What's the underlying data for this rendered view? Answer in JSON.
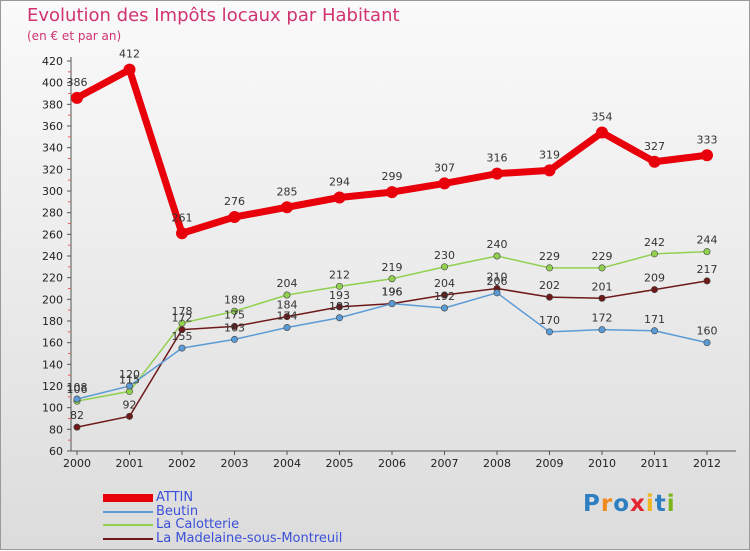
{
  "header": {
    "title": "Evolution des Impôts locaux par Habitant",
    "subtitle": "(en € et par an)"
  },
  "logo": {
    "text": "Proxiti"
  },
  "chart_data": {
    "type": "line",
    "title": "Evolution des Impôts locaux par Habitant",
    "subtitle": "(en € et par an)",
    "xlabel": "",
    "ylabel": "",
    "x": [
      "2000",
      "2001",
      "2002",
      "2003",
      "2004",
      "2005",
      "2006",
      "2007",
      "2008",
      "2009",
      "2010",
      "2011",
      "2012"
    ],
    "ylim": [
      60,
      420
    ],
    "yticks": [
      60,
      80,
      100,
      120,
      140,
      160,
      180,
      200,
      220,
      240,
      260,
      280,
      300,
      320,
      340,
      360,
      380,
      400,
      420
    ],
    "grid": false,
    "legend": "bottom-left",
    "series": [
      {
        "name": "ATTIN",
        "color": "#e8000b",
        "values": [
          386,
          412,
          261,
          276,
          285,
          294,
          299,
          307,
          316,
          319,
          354,
          327,
          333
        ]
      },
      {
        "name": "Beutin",
        "color": "#5b9bd5",
        "values": [
          108,
          120,
          155,
          163,
          174,
          183,
          196,
          192,
          206,
          170,
          172,
          171,
          160
        ]
      },
      {
        "name": "La Calotterie",
        "color": "#92d050",
        "values": [
          106,
          115,
          178,
          189,
          204,
          212,
          219,
          230,
          240,
          229,
          229,
          242,
          244
        ]
      },
      {
        "name": "La Madelaine-sous-Montreuil",
        "color": "#6e1a1a",
        "values": [
          82,
          92,
          172,
          175,
          184,
          193,
          196,
          204,
          210,
          202,
          201,
          209,
          217
        ]
      }
    ]
  }
}
